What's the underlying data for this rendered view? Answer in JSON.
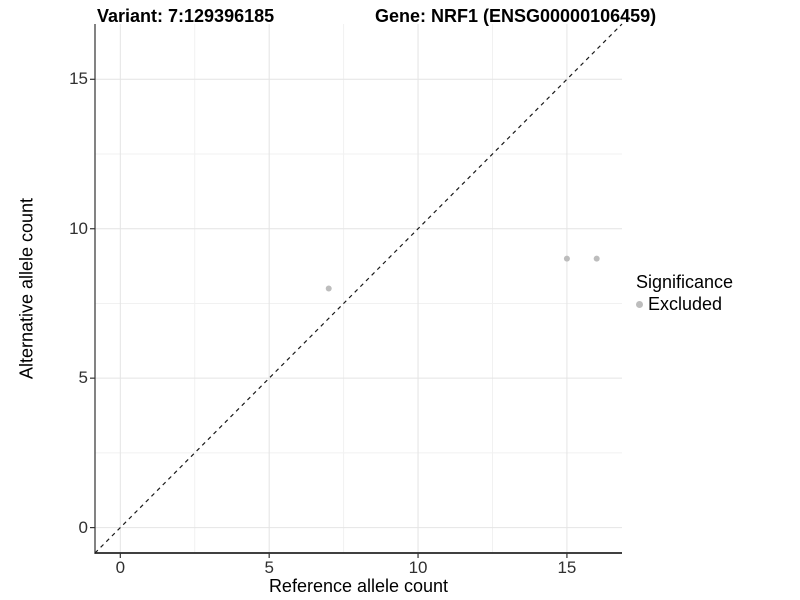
{
  "title": {
    "variant_label": "Variant: 7:129396185",
    "gene_label": "Gene: NRF1 (ENSG00000106459)"
  },
  "chart_data": {
    "type": "scatter",
    "title": "Variant: 7:129396185   Gene: NRF1 (ENSG00000106459)",
    "xlabel": "Reference allele count",
    "ylabel": "Alternative allele count",
    "xlim": [
      -0.85,
      16.85
    ],
    "ylim": [
      -0.85,
      16.85
    ],
    "x_major_ticks": [
      0,
      5,
      10,
      15
    ],
    "y_major_ticks": [
      0,
      5,
      10,
      15
    ],
    "x_tick_labels": [
      "0",
      "5",
      "10",
      "15"
    ],
    "y_tick_labels": [
      "0",
      "5",
      "10",
      "15"
    ],
    "x_minor_ticks": [
      2.5,
      7.5,
      12.5
    ],
    "y_minor_ticks": [
      2.5,
      7.5,
      12.5
    ],
    "grid": "major and minor, light gray on white",
    "series": [
      {
        "name": "Excluded",
        "points": [
          {
            "x": 7,
            "y": 8
          },
          {
            "x": 15,
            "y": 9
          },
          {
            "x": 16,
            "y": 9
          }
        ]
      }
    ],
    "abline": {
      "slope": 1,
      "intercept": 0,
      "style": "dashed"
    },
    "legend": {
      "title": "Significance",
      "position": "right",
      "entries": [
        {
          "label": "Excluded"
        }
      ]
    },
    "colors": {
      "point": "#bdbdbd",
      "grid_major": "#e4e4e4",
      "grid_minor": "#f1f1f1",
      "axis_line": "#404040",
      "tick_mark": "#333333",
      "tick_label": "#303030",
      "abline": "#1a1a1a",
      "background": "#ffffff"
    }
  }
}
